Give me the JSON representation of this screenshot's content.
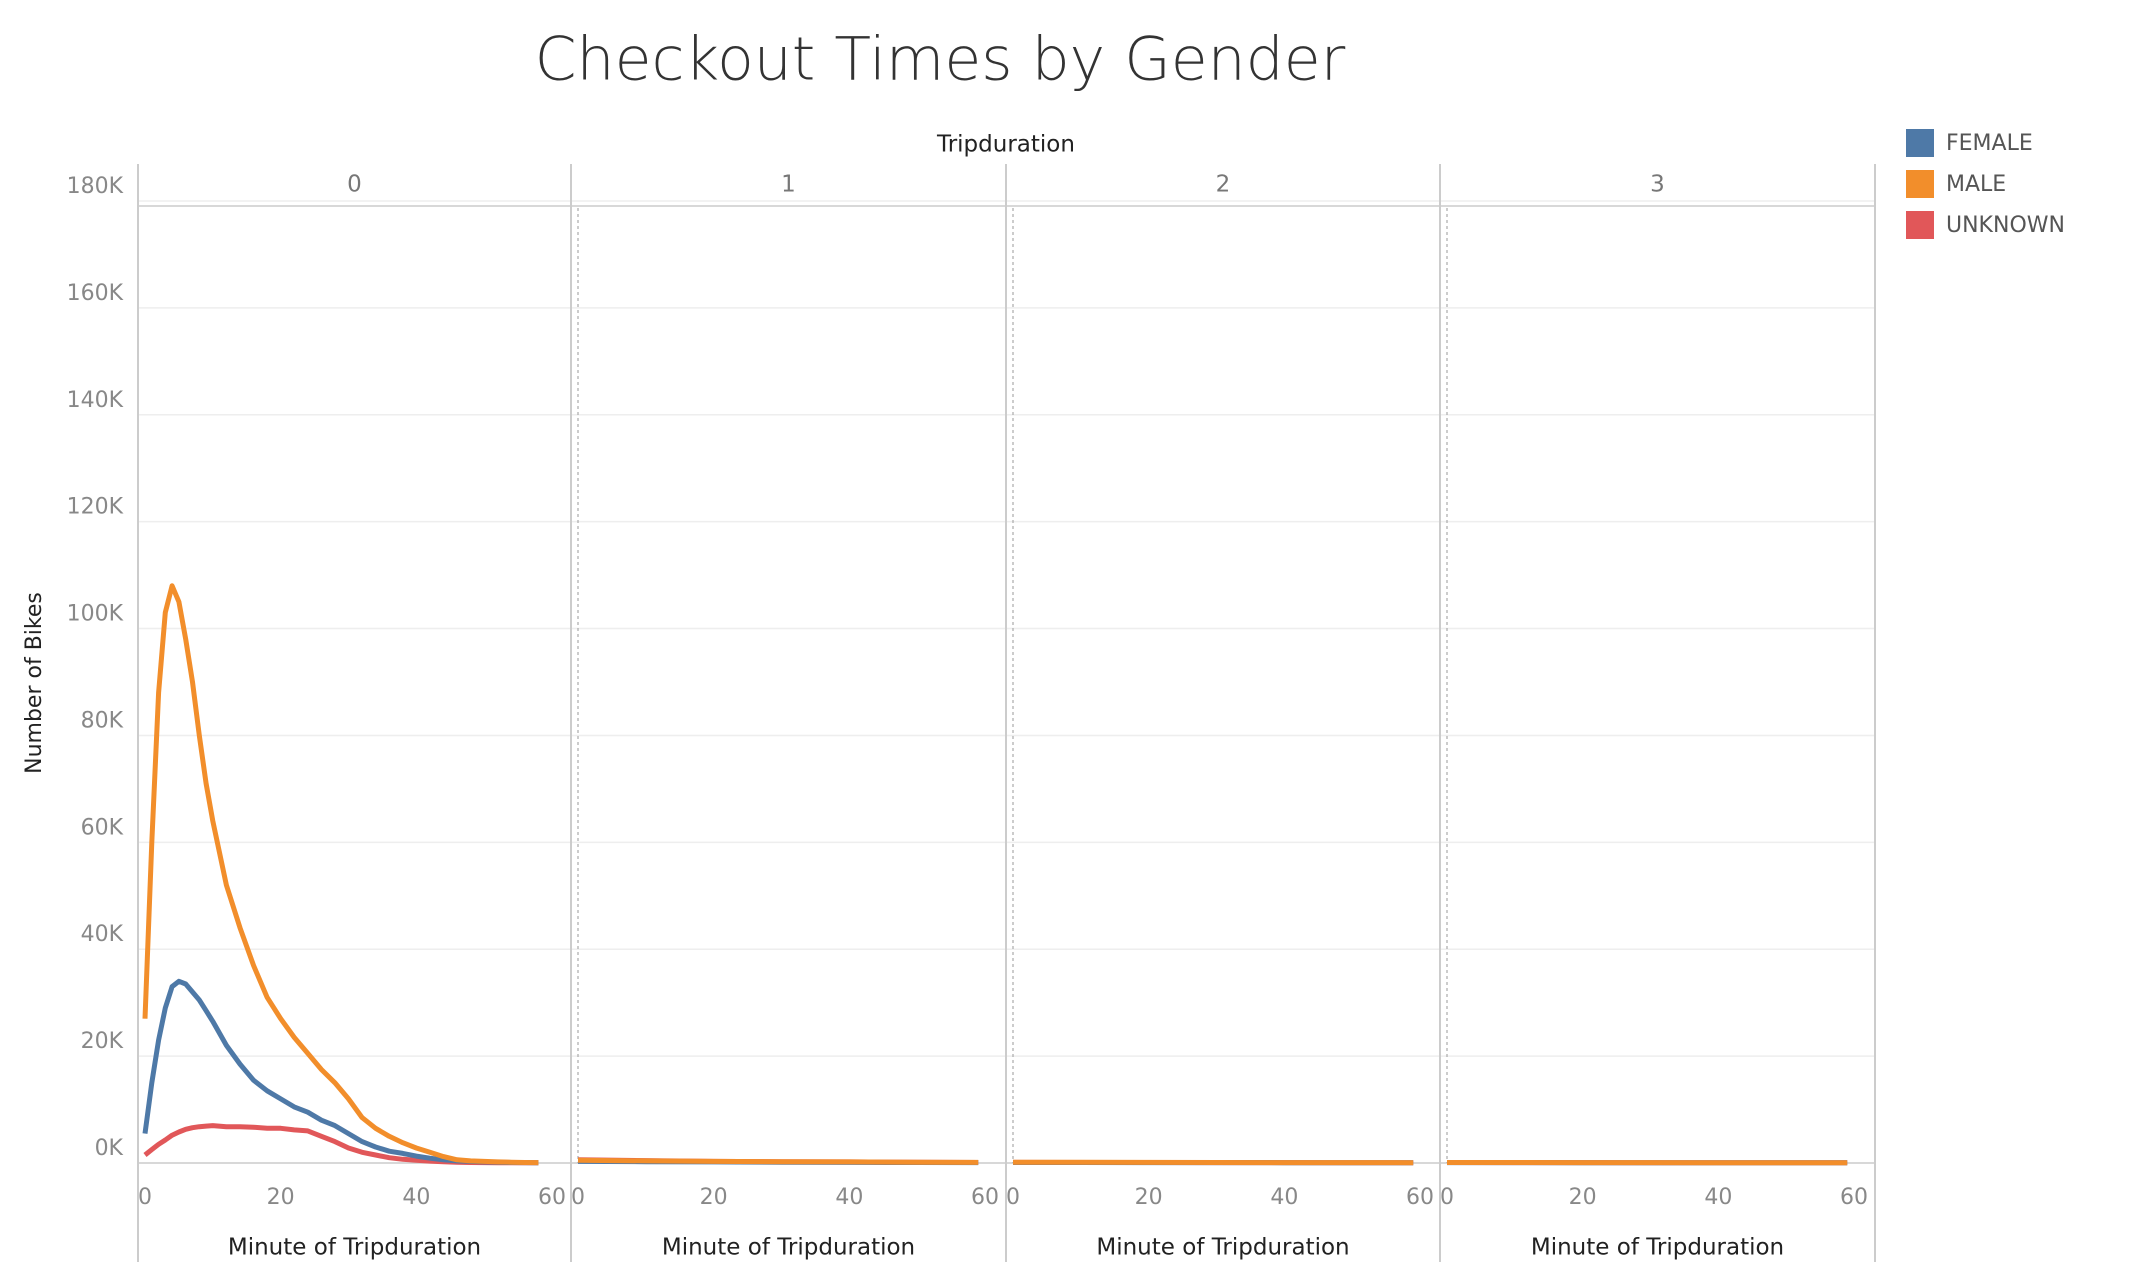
{
  "chart_data": {
    "type": "line",
    "title": "Checkout Times by Gender",
    "facet_title": "Tripduration",
    "x_label": "Minute of Tripduration",
    "y_label": "Number of  Bikes",
    "xlim": [
      0,
      60
    ],
    "xticks": [
      0,
      20,
      40,
      60
    ],
    "ylim": [
      0,
      180000
    ],
    "yticks": [
      {
        "value": 0,
        "label": "0K"
      },
      {
        "value": 20000,
        "label": "20K"
      },
      {
        "value": 40000,
        "label": "40K"
      },
      {
        "value": 60000,
        "label": "60K"
      },
      {
        "value": 80000,
        "label": "80K"
      },
      {
        "value": 100000,
        "label": "100K"
      },
      {
        "value": 120000,
        "label": "120K"
      },
      {
        "value": 140000,
        "label": "140K"
      },
      {
        "value": 160000,
        "label": "160K"
      },
      {
        "value": 180000,
        "label": "180K"
      }
    ],
    "grid": true,
    "legend_position": "right",
    "series": [
      {
        "name": "FEMALE",
        "color": "#4e79a7"
      },
      {
        "name": "MALE",
        "color": "#f28e2b"
      },
      {
        "name": "UNKNOWN",
        "color": "#e15759"
      }
    ],
    "panels": [
      {
        "label": "0",
        "x": [
          0,
          1,
          2,
          3,
          4,
          5,
          6,
          7,
          8,
          9,
          10,
          12,
          14,
          16,
          18,
          20,
          22,
          24,
          26,
          28,
          30,
          32,
          34,
          36,
          38,
          40,
          42,
          44,
          46,
          48,
          50,
          52,
          54,
          56,
          58
        ],
        "series": [
          {
            "values": [
              5500,
              15000,
              23000,
              29000,
              33000,
              34000,
              33500,
              32000,
              30500,
              28500,
              26500,
              22000,
              18500,
              15500,
              13500,
              12000,
              10500,
              9500,
              8000,
              7000,
              5500,
              4000,
              3000,
              2200,
              1800,
              1300,
              900,
              600,
              400,
              300,
              200,
              150,
              100,
              80,
              60
            ]
          },
          {
            "values": [
              27000,
              60000,
              88000,
              103000,
              108000,
              105000,
              98000,
              90000,
              80000,
              71000,
              64000,
              52000,
              44000,
              37000,
              31000,
              27000,
              23500,
              20500,
              17500,
              15000,
              12000,
              8500,
              6500,
              5000,
              3800,
              2800,
              2000,
              1200,
              600,
              400,
              300,
              200,
              150,
              100,
              80
            ]
          },
          {
            "values": [
              1500,
              2500,
              3500,
              4300,
              5200,
              5800,
              6300,
              6600,
              6800,
              6900,
              7000,
              6800,
              6800,
              6700,
              6500,
              6500,
              6200,
              6000,
              5000,
              4000,
              2800,
              2000,
              1500,
              1000,
              700,
              500,
              350,
              250,
              150,
              100,
              80,
              60,
              50,
              40,
              30
            ]
          }
        ]
      },
      {
        "label": "1",
        "x": [
          0,
          10,
          20,
          30,
          40,
          50,
          59
        ],
        "series": [
          {
            "values": [
              300,
              250,
              200,
              150,
              120,
              100,
              80
            ]
          },
          {
            "values": [
              500,
              400,
              300,
              250,
              200,
              150,
              120
            ]
          },
          {
            "values": [
              600,
              450,
              300,
              250,
              200,
              150,
              100
            ]
          }
        ]
      },
      {
        "label": "2",
        "x": [
          0,
          10,
          20,
          30,
          40,
          50,
          59
        ],
        "series": [
          {
            "values": [
              100,
              90,
              80,
              70,
              60,
              50,
              40
            ]
          },
          {
            "values": [
              150,
              130,
              110,
              90,
              80,
              70,
              60
            ]
          },
          {
            "values": [
              120,
              100,
              90,
              80,
              70,
              60,
              50
            ]
          }
        ]
      },
      {
        "label": "3",
        "x": [
          0,
          10,
          20,
          30,
          40,
          50,
          59
        ],
        "series": [
          {
            "values": [
              80,
              70,
              60,
              50,
              40,
              35,
              30
            ]
          },
          {
            "values": [
              100,
              90,
              80,
              70,
              60,
              50,
              40
            ]
          },
          {
            "values": [
              90,
              80,
              70,
              60,
              50,
              40,
              35
            ]
          }
        ]
      }
    ]
  }
}
